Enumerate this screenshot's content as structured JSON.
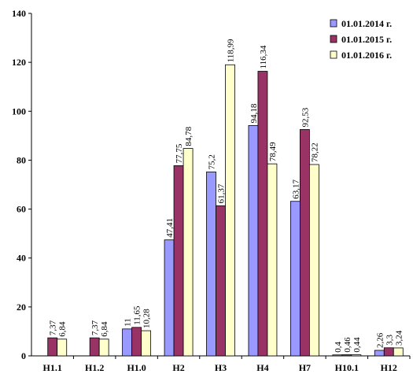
{
  "chart_data": {
    "type": "bar",
    "categories": [
      "Н1.1",
      "Н1.2",
      "Н1.0",
      "Н2",
      "Н3",
      "Н4",
      "Н7",
      "Н10.1",
      "Н12"
    ],
    "ylim": [
      0,
      140
    ],
    "yticks": [
      0,
      20,
      40,
      60,
      80,
      100,
      120,
      140
    ],
    "grid": false,
    "legend_position": "top-right",
    "series": [
      {
        "name": "01.01.2014 г.",
        "color": "#9999ff",
        "values": [
          null,
          null,
          11,
          47.41,
          75.2,
          94.18,
          63.17,
          0.4,
          2.26
        ],
        "labels": [
          "",
          "",
          "11",
          "47,41",
          "75,2",
          "94,18",
          "63,17",
          "0,4",
          "2,26"
        ]
      },
      {
        "name": "01.01.2015 г.",
        "color": "#993366",
        "values": [
          7.37,
          7.37,
          11.65,
          77.75,
          61.37,
          116.34,
          92.53,
          0.46,
          3.3
        ],
        "labels": [
          "7,37",
          "7,37",
          "11,65",
          "77,75",
          "61,37",
          "116,34",
          "92,53",
          "0,46",
          "3,3"
        ]
      },
      {
        "name": "01.01.2016 г.",
        "color": "#ffffcc",
        "values": [
          6.84,
          6.84,
          10.28,
          84.78,
          118.99,
          78.49,
          78.22,
          0.44,
          3.24
        ],
        "labels": [
          "6,84",
          "6,84",
          "10,28",
          "84,78",
          "118,99",
          "78,49",
          "78,22",
          "0,44",
          "3,24"
        ]
      }
    ]
  }
}
